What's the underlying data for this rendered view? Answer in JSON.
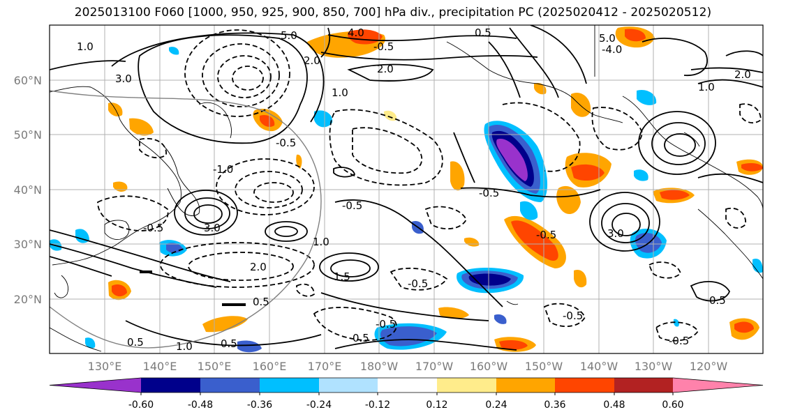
{
  "title": "2025013100 F060 [1000, 950, 925, 900, 850, 700] hPa div., precipitation PC (2025020412 - 2025020512)",
  "lat_labels": [
    "60°N",
    "50°N",
    "40°N",
    "30°N",
    "20°N"
  ],
  "lon_labels": [
    "130°E",
    "140°E",
    "150°E",
    "160°E",
    "170°E",
    "180°W",
    "170°W",
    "160°W",
    "150°W",
    "140°W",
    "130°W",
    "120°W"
  ],
  "contour_labels": [
    "5.0",
    "4.0",
    "1.0",
    "3.0",
    "2.0",
    "0.5",
    "-0.5",
    "1.0",
    "-0.5",
    "3.0",
    "-0.5",
    "-1.0",
    "2.0",
    "1.0",
    "1.5",
    "0.5",
    "0.5",
    "-0.5",
    "-0.5",
    "-0.5",
    "0.5",
    "1.0",
    "0.5",
    "-0.5",
    "3.0",
    "-0.5",
    "2.0",
    "0.5",
    "-0.5",
    "5.0",
    "-4.0",
    "-0.5",
    "1.0",
    "2.0"
  ],
  "colorbar": {
    "ticks": [
      "-0.60",
      "-0.48",
      "-0.36",
      "-0.24",
      "-0.12",
      "0.12",
      "0.24",
      "0.36",
      "0.48",
      "0.60"
    ],
    "colors": [
      "#9932CC",
      "#00008B",
      "#3A5FCD",
      "#00BFFF",
      "#B0E2FF",
      "#FFFFFF",
      "#FFEC8B",
      "#FFA500",
      "#FF4500",
      "#B22222",
      "#FF82AB"
    ]
  },
  "colors": {
    "grid": "#b0b0b0",
    "label": "#7a7a7a",
    "contour": "#000000"
  }
}
